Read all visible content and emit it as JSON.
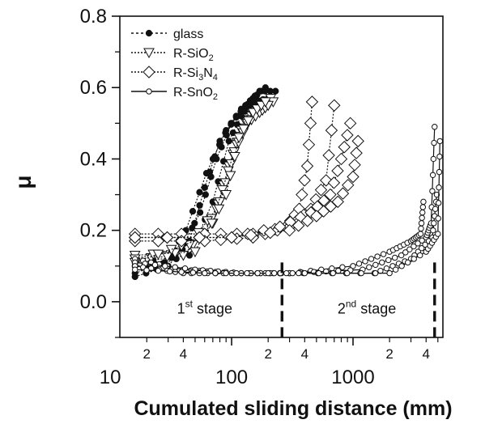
{
  "chart_data": {
    "type": "scatter",
    "xlabel": "Cumulated sliding distance (mm)",
    "ylabel": "μ",
    "xscale": "log",
    "xlim": [
      12,
      5500
    ],
    "ylim": [
      -0.1,
      0.8
    ],
    "x_tick_labels": [
      "10",
      "100",
      "1000"
    ],
    "x_minor_tick_labels": [
      "2",
      "4",
      "2",
      "4",
      "2",
      "4"
    ],
    "x_minor_tick_values": [
      20,
      40,
      200,
      400,
      2000,
      4000
    ],
    "y_tick_labels": [
      "0.0",
      "0.2",
      "0.4",
      "0.6",
      "0.8"
    ],
    "grid": false,
    "legend_position": "top-left",
    "stage_dividers": [
      260,
      4700
    ],
    "annotations": [
      {
        "base": "1",
        "sup": "st",
        "rest": " stage",
        "x": 60,
        "y": -0.02
      },
      {
        "base": "2",
        "sup": "nd",
        "rest": " stage",
        "x": 1300,
        "y": -0.02
      }
    ],
    "series": [
      {
        "name": "glass",
        "marker": "filled-circle",
        "line": "dotted",
        "curves": [
          [
            [
              16,
              0.07
            ],
            [
              30,
              0.1
            ],
            [
              45,
              0.17
            ],
            [
              60,
              0.32
            ],
            [
              80,
              0.45
            ],
            [
              110,
              0.52
            ],
            [
              150,
              0.57
            ],
            [
              190,
              0.6
            ]
          ],
          [
            [
              16,
              0.08
            ],
            [
              35,
              0.12
            ],
            [
              55,
              0.25
            ],
            [
              75,
              0.4
            ],
            [
              100,
              0.5
            ],
            [
              130,
              0.55
            ],
            [
              170,
              0.59
            ],
            [
              230,
              0.59
            ]
          ],
          [
            [
              16,
              0.1
            ],
            [
              28,
              0.11
            ],
            [
              42,
              0.2
            ],
            [
              62,
              0.36
            ],
            [
              90,
              0.48
            ],
            [
              120,
              0.54
            ],
            [
              160,
              0.56
            ]
          ],
          [
            [
              16,
              0.11
            ],
            [
              45,
              0.13
            ],
            [
              70,
              0.28
            ],
            [
              95,
              0.45
            ],
            [
              120,
              0.52
            ],
            [
              150,
              0.56
            ],
            [
              200,
              0.57
            ]
          ]
        ]
      },
      {
        "name": "R-SiO2",
        "marker": "open-triangle-down",
        "line": "dotted",
        "curves": [
          [
            [
              16,
              0.12
            ],
            [
              40,
              0.13
            ],
            [
              70,
              0.22
            ],
            [
              95,
              0.38
            ],
            [
              120,
              0.48
            ],
            [
              160,
              0.54
            ],
            [
              210,
              0.57
            ]
          ],
          [
            [
              16,
              0.13
            ],
            [
              50,
              0.14
            ],
            [
              80,
              0.28
            ],
            [
              110,
              0.44
            ],
            [
              140,
              0.51
            ],
            [
              180,
              0.55
            ],
            [
              220,
              0.56
            ]
          ],
          [
            [
              16,
              0.12
            ],
            [
              45,
              0.16
            ],
            [
              75,
              0.26
            ],
            [
              105,
              0.42
            ],
            [
              135,
              0.5
            ],
            [
              170,
              0.53
            ],
            [
              200,
              0.55
            ]
          ],
          [
            [
              16,
              0.11
            ],
            [
              60,
              0.18
            ],
            [
              90,
              0.3
            ],
            [
              115,
              0.46
            ],
            [
              150,
              0.53
            ],
            [
              190,
              0.56
            ]
          ]
        ]
      },
      {
        "name": "R-Si3N4",
        "marker": "open-diamond",
        "line": "dotted",
        "curves": [
          [
            [
              16,
              0.19
            ],
            [
              60,
              0.19
            ],
            [
              150,
              0.19
            ],
            [
              280,
              0.21
            ],
            [
              360,
              0.26
            ],
            [
              420,
              0.38
            ],
            [
              460,
              0.56
            ]
          ],
          [
            [
              16,
              0.17
            ],
            [
              60,
              0.17
            ],
            [
              150,
              0.18
            ],
            [
              300,
              0.21
            ],
            [
              450,
              0.26
            ],
            [
              600,
              0.34
            ],
            [
              700,
              0.55
            ]
          ],
          [
            [
              16,
              0.18
            ],
            [
              100,
              0.18
            ],
            [
              250,
              0.21
            ],
            [
              450,
              0.25
            ],
            [
              650,
              0.3
            ],
            [
              800,
              0.4
            ],
            [
              950,
              0.5
            ]
          ],
          [
            [
              16,
              0.18
            ],
            [
              100,
              0.18
            ],
            [
              300,
              0.2
            ],
            [
              500,
              0.24
            ],
            [
              750,
              0.28
            ],
            [
              1000,
              0.35
            ],
            [
              1100,
              0.45
            ]
          ]
        ]
      },
      {
        "name": "R-SnO2",
        "marker": "open-circle",
        "line": "solid",
        "curves": [
          [
            [
              16,
              0.12
            ],
            [
              40,
              0.09
            ],
            [
              100,
              0.08
            ],
            [
              300,
              0.08
            ],
            [
              1000,
              0.1
            ],
            [
              2000,
              0.14
            ],
            [
              3000,
              0.17
            ],
            [
              3600,
              0.19
            ],
            [
              3800,
              0.28
            ]
          ],
          [
            [
              16,
              0.11
            ],
            [
              50,
              0.09
            ],
            [
              120,
              0.08
            ],
            [
              300,
              0.08
            ],
            [
              1200,
              0.09
            ],
            [
              2500,
              0.13
            ],
            [
              4000,
              0.18
            ],
            [
              4400,
              0.22
            ],
            [
              4700,
              0.49
            ]
          ],
          [
            [
              16,
              0.1
            ],
            [
              40,
              0.08
            ],
            [
              100,
              0.08
            ],
            [
              300,
              0.08
            ],
            [
              1500,
              0.08
            ],
            [
              3000,
              0.12
            ],
            [
              4500,
              0.18
            ],
            [
              4900,
              0.3
            ]
          ],
          [
            [
              16,
              0.09
            ],
            [
              60,
              0.08
            ],
            [
              200,
              0.08
            ],
            [
              400,
              0.08
            ],
            [
              2000,
              0.08
            ],
            [
              4000,
              0.14
            ],
            [
              5000,
              0.19
            ],
            [
              5200,
              0.45
            ]
          ]
        ]
      }
    ]
  }
}
